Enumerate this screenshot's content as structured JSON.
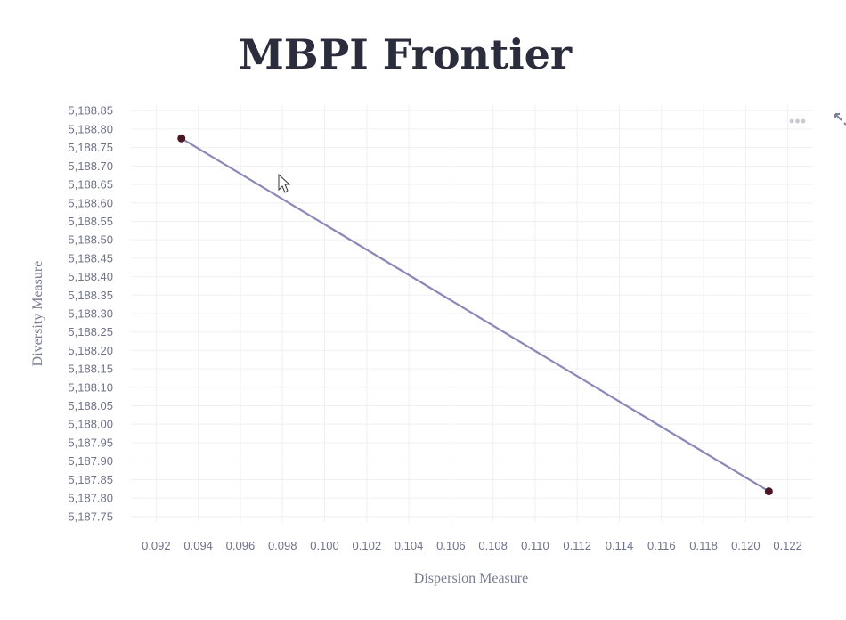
{
  "chart_data": {
    "type": "line",
    "title": "MBPI Frontier",
    "xlabel": "Dispersion Measure",
    "ylabel": "Diversity Measure",
    "xlim": [
      0.0908,
      0.1232
    ],
    "ylim": [
      5187.735,
      5188.865
    ],
    "x_ticks": [
      "0.092",
      "0.094",
      "0.096",
      "0.098",
      "0.100",
      "0.102",
      "0.104",
      "0.106",
      "0.108",
      "0.110",
      "0.112",
      "0.114",
      "0.116",
      "0.118",
      "0.120",
      "0.122"
    ],
    "x_tick_values": [
      0.092,
      0.094,
      0.096,
      0.098,
      0.1,
      0.102,
      0.104,
      0.106,
      0.108,
      0.11,
      0.112,
      0.114,
      0.116,
      0.118,
      0.12,
      0.122
    ],
    "y_ticks": [
      "5,188.85",
      "5,188.80",
      "5,188.75",
      "5,188.70",
      "5,188.65",
      "5,188.60",
      "5,188.55",
      "5,188.50",
      "5,188.45",
      "5,188.40",
      "5,188.35",
      "5,188.30",
      "5,188.25",
      "5,188.20",
      "5,188.15",
      "5,188.10",
      "5,188.05",
      "5,188.00",
      "5,187.95",
      "5,187.90",
      "5,187.85",
      "5,187.80",
      "5,187.75"
    ],
    "y_tick_values": [
      5188.85,
      5188.8,
      5188.75,
      5188.7,
      5188.65,
      5188.6,
      5188.55,
      5188.5,
      5188.45,
      5188.4,
      5188.35,
      5188.3,
      5188.25,
      5188.2,
      5188.15,
      5188.1,
      5188.05,
      5188.0,
      5187.95,
      5187.9,
      5187.85,
      5187.8,
      5187.75
    ],
    "series": [
      {
        "x": [
          0.0932,
          0.1211
        ],
        "y": [
          5188.775,
          5187.818
        ]
      }
    ],
    "grid": true,
    "legend": false,
    "colors": {
      "line": "#8a88b8",
      "points": "#4a1626",
      "grid": "#f0f0f3",
      "text": "#6f7289",
      "title": "#2b2d3c"
    }
  },
  "toolbar": {
    "more_icon": "more-horizontal-icon",
    "expand_icon": "expand-arrows-icon"
  },
  "cursor": {
    "icon": "mouse-pointer-icon"
  }
}
